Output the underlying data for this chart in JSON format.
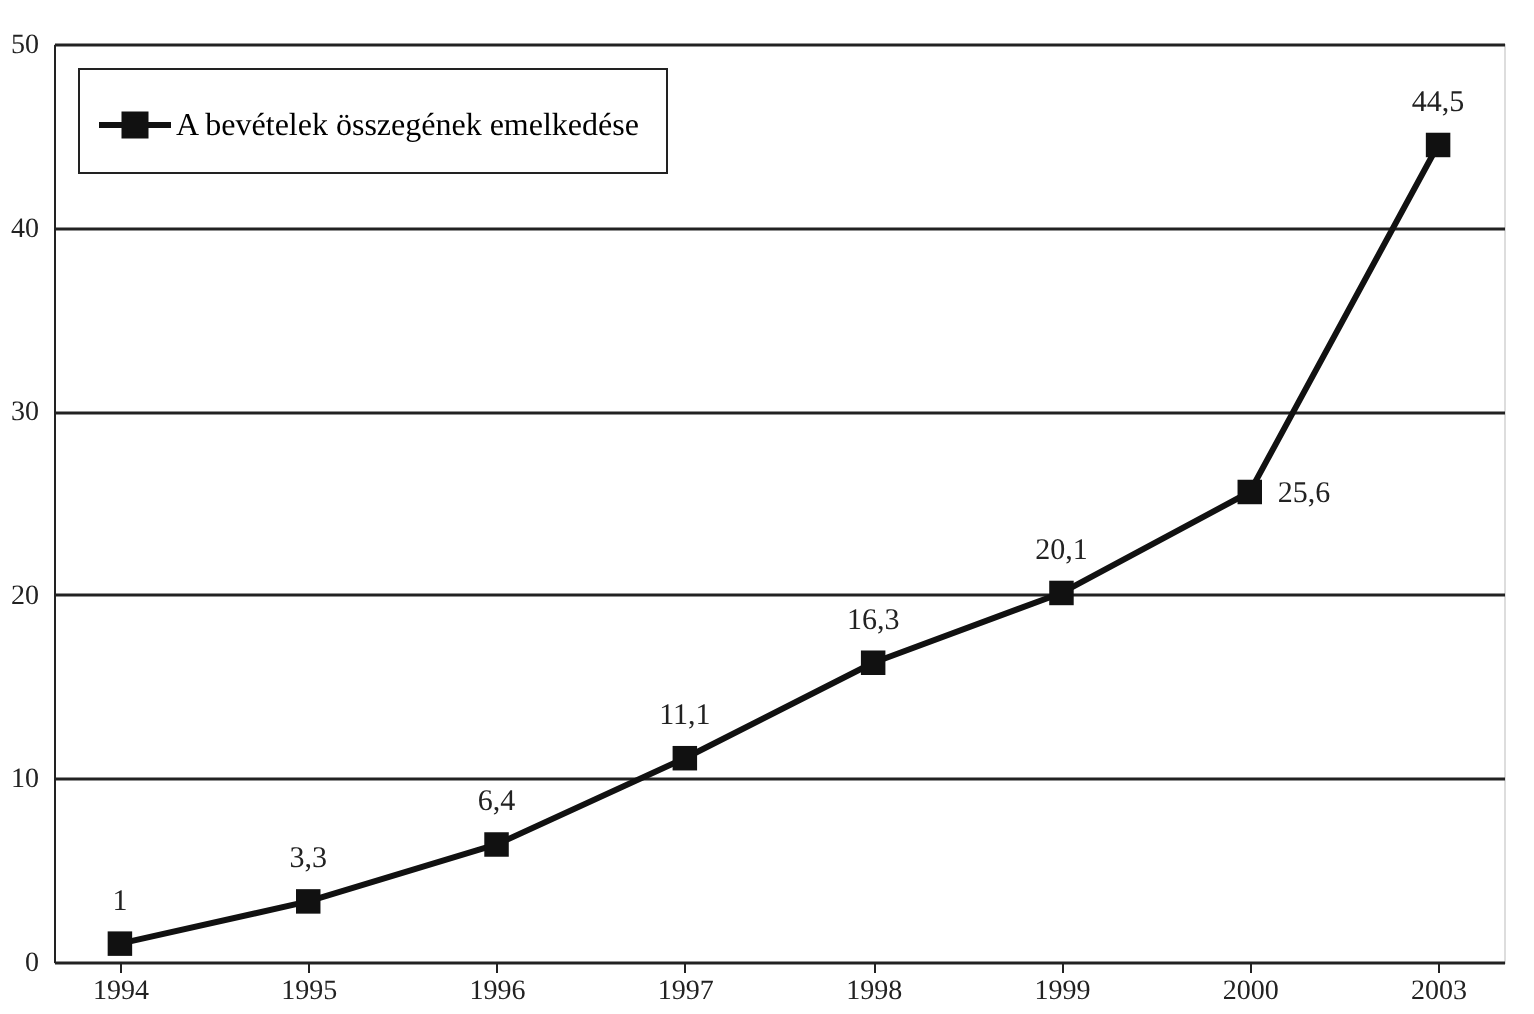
{
  "chart_data": {
    "type": "line",
    "categories": [
      "1994",
      "1995",
      "1996",
      "1997",
      "1998",
      "1999",
      "2000",
      "2003"
    ],
    "series": [
      {
        "name": "A bevételek összegének emelkedése",
        "color": "#111111",
        "values": [
          1,
          3.3,
          6.4,
          11.1,
          16.3,
          20.1,
          25.6,
          44.5
        ],
        "value_labels": [
          "1",
          "3,3",
          "6,4",
          "11,1",
          "16,3",
          "20,1",
          "25,6",
          "44,5"
        ]
      }
    ],
    "ylim": [
      0,
      50
    ],
    "yticks": [
      0,
      10,
      20,
      30,
      40,
      50
    ],
    "grid": "y",
    "legend": "top left",
    "marker": "square",
    "line_style": "solid"
  }
}
